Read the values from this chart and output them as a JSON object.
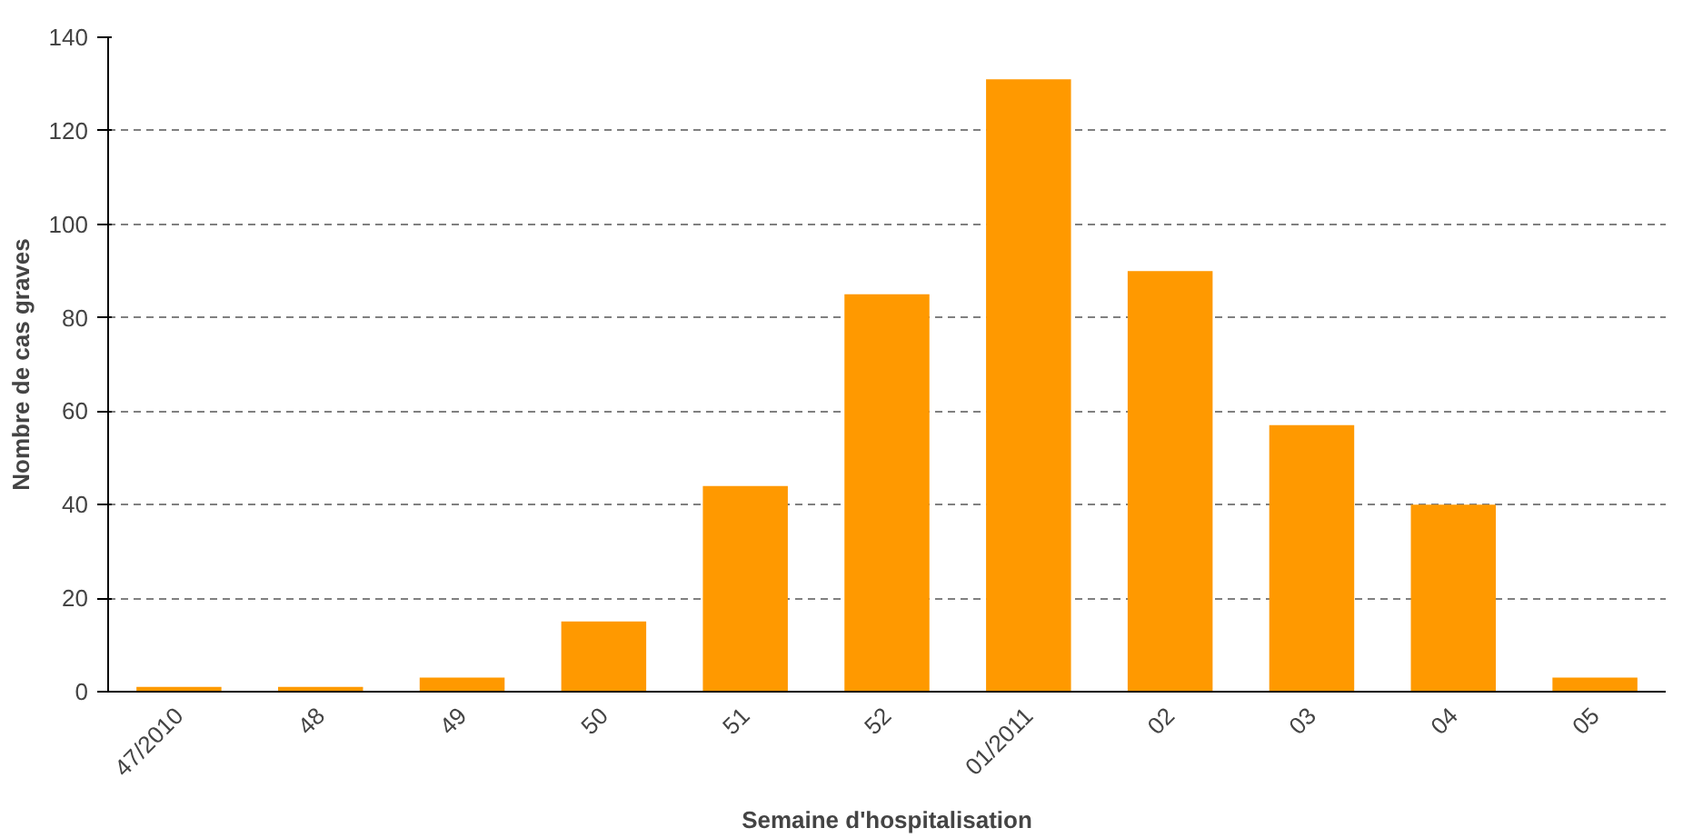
{
  "chart_data": {
    "type": "bar",
    "xlabel": "Semaine d'hospitalisation",
    "ylabel": "Nombre de cas graves",
    "categories": [
      "47/2010",
      "48",
      "49",
      "50",
      "51",
      "52",
      "01/2011",
      "02",
      "03",
      "04",
      "05"
    ],
    "values": [
      1,
      1,
      3,
      15,
      44,
      85,
      131,
      90,
      57,
      40,
      3
    ],
    "color": "#ff9900",
    "ylim": [
      0,
      140
    ],
    "yticks": [
      0,
      20,
      40,
      60,
      80,
      100,
      120,
      140
    ],
    "grid": "y"
  }
}
